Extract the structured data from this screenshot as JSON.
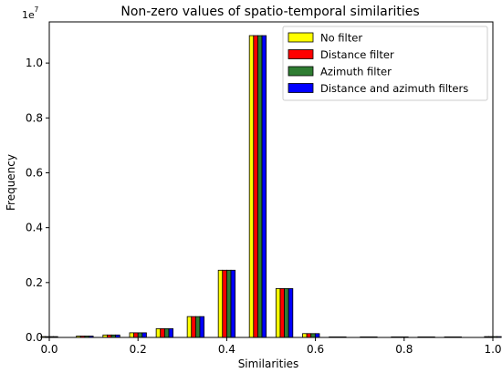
{
  "chart_data": {
    "type": "bar",
    "title": "Non-zero values of spatio-temporal similarities",
    "xlabel": "Similarities",
    "ylabel": "Frequency",
    "xlim": [
      0.0,
      1.0
    ],
    "ylim": [
      0,
      11500000
    ],
    "y_offset_label": {
      "base": "1e",
      "exponent": "7"
    },
    "x_ticks": [
      "0.0",
      "0.2",
      "0.4",
      "0.6",
      "0.8",
      "1.0"
    ],
    "y_ticks": [
      "0.0",
      "0.2",
      "0.4",
      "0.6",
      "0.8",
      "1.0"
    ],
    "bin_centers": [
      0.0,
      0.08,
      0.14,
      0.2,
      0.26,
      0.33,
      0.4,
      0.47,
      0.53,
      0.59,
      0.65,
      0.72,
      0.79,
      0.85,
      0.91,
      1.0
    ],
    "bar_width": 0.0095,
    "legend_position": "top-right",
    "series": [
      {
        "name": "No filter",
        "color": "#ffff00",
        "values": [
          30000,
          50000,
          90000,
          170000,
          320000,
          760000,
          2450000,
          11000000,
          1780000,
          140000,
          8000,
          2000,
          1000,
          500,
          300,
          30000
        ]
      },
      {
        "name": "Distance filter",
        "color": "#ff0000",
        "values": [
          30000,
          50000,
          90000,
          170000,
          320000,
          760000,
          2450000,
          11000000,
          1780000,
          140000,
          8000,
          2000,
          1000,
          500,
          300,
          30000
        ]
      },
      {
        "name": "Azimuth filter",
        "color": "#2f7d32",
        "values": [
          30000,
          50000,
          90000,
          170000,
          320000,
          760000,
          2450000,
          11000000,
          1780000,
          140000,
          8000,
          2000,
          1000,
          500,
          300,
          30000
        ]
      },
      {
        "name": "Distance and azimuth filters",
        "color": "#0000ff",
        "values": [
          30000,
          50000,
          90000,
          170000,
          320000,
          760000,
          2450000,
          11000000,
          1780000,
          140000,
          8000,
          2000,
          1000,
          500,
          300,
          30000
        ]
      }
    ]
  }
}
